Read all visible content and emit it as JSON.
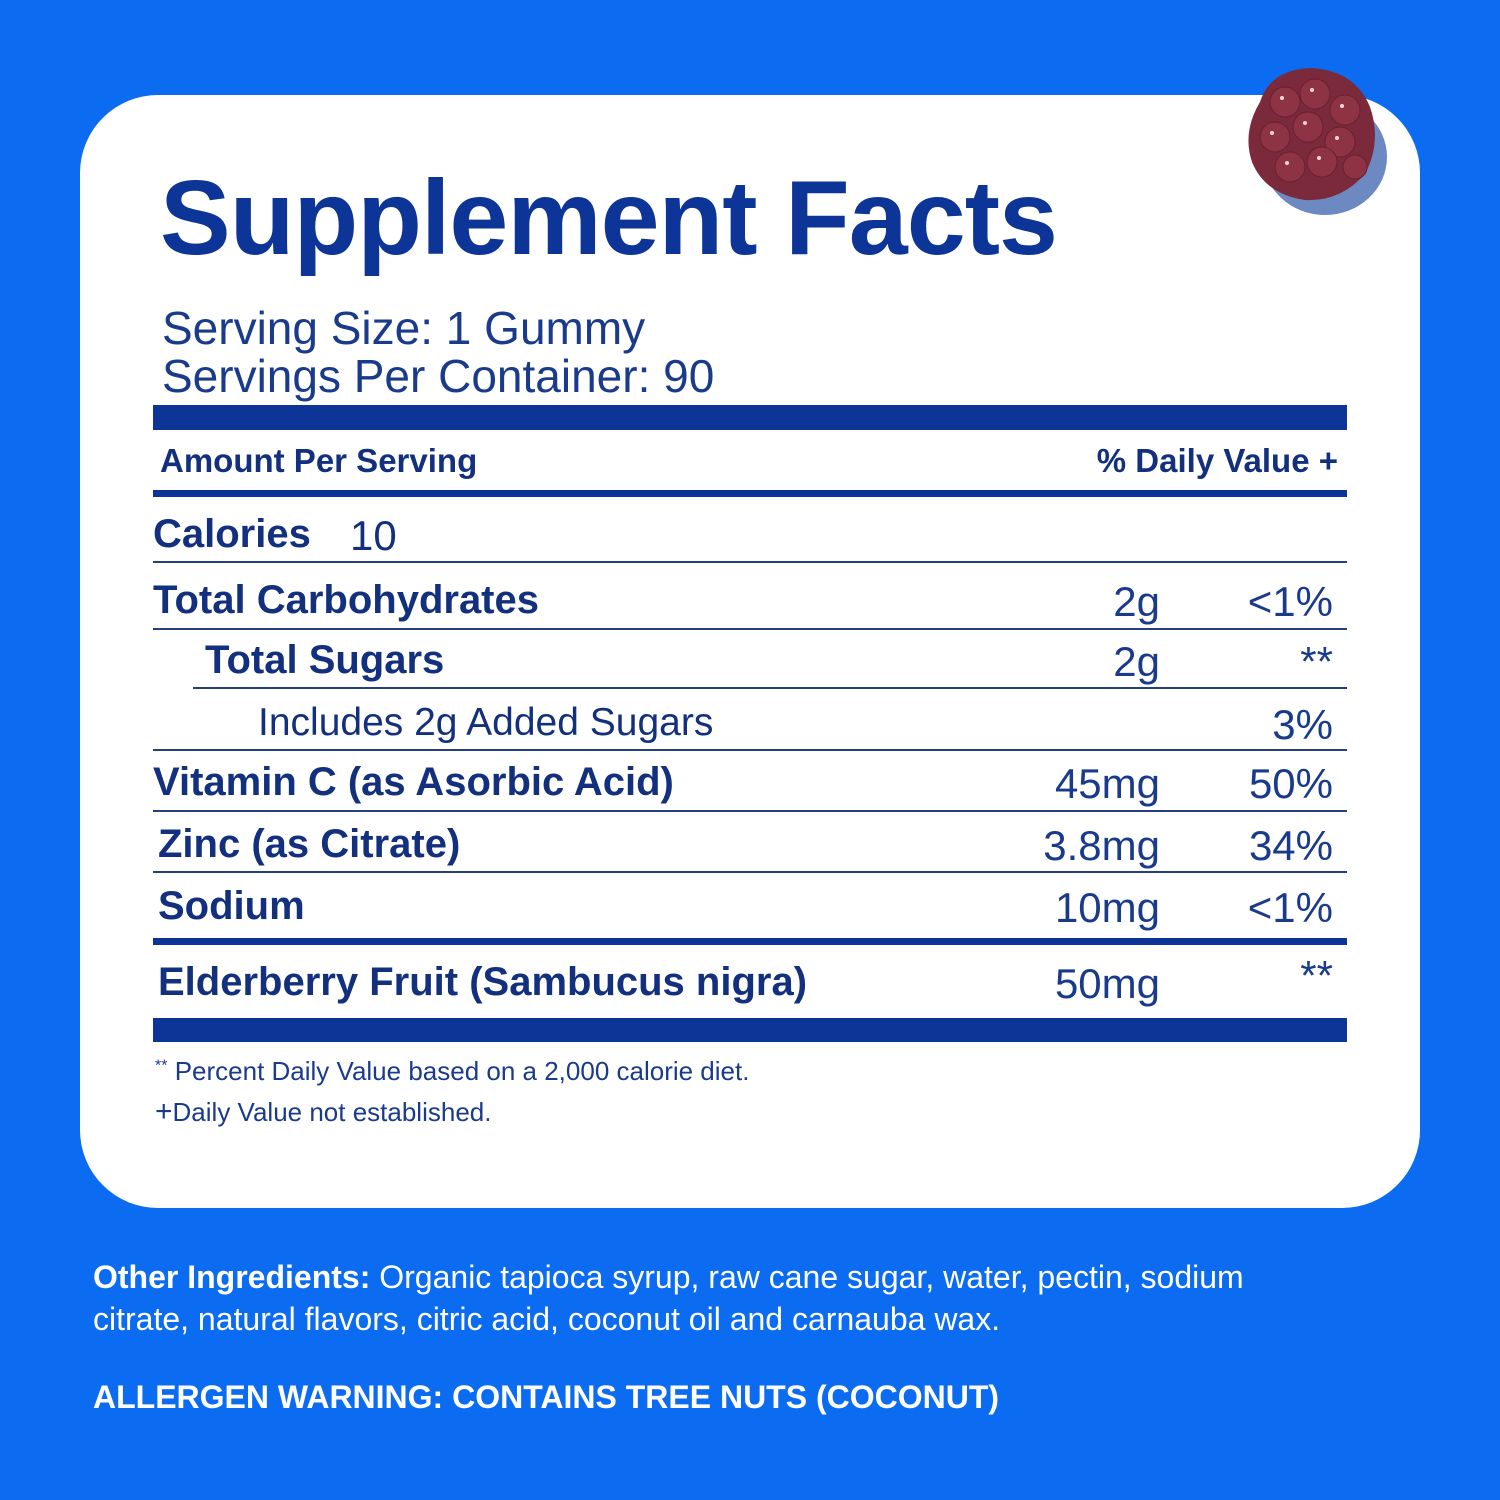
{
  "label": {
    "title": "Supplement Facts",
    "serving_size": "Serving Size: 1 Gummy",
    "servings_per_container": "Servings Per Container: 90",
    "header_amount": "Amount Per Serving",
    "header_dv": "% Daily Value +",
    "calories_label": "Calories",
    "calories_value": "10",
    "rows": [
      {
        "name": "Total Carbohydrates",
        "amount": "2g",
        "dv": "<1%"
      },
      {
        "name": "Total Sugars",
        "amount": "2g",
        "dv": "**"
      },
      {
        "name": "Includes 2g Added Sugars",
        "amount": "",
        "dv": "3%"
      },
      {
        "name": "Vitamin C (as Asorbic Acid)",
        "amount": "45mg",
        "dv": "50%"
      },
      {
        "name": "Zinc (as Citrate)",
        "amount": "3.8mg",
        "dv": "34%"
      },
      {
        "name": "Sodium",
        "amount": "10mg",
        "dv": "<1%"
      },
      {
        "name": "Elderberry Fruit (Sambucus nigra)",
        "amount": "50mg",
        "dv": "**"
      }
    ],
    "footnote_1_mark": "**",
    "footnote_1": "Percent Daily Value based on a 2,000 calorie diet.",
    "footnote_2_mark": "+",
    "footnote_2": "Daily Value not established."
  },
  "ingredients": {
    "label": "Other Ingredients:",
    "text": " Organic tapioca syrup, raw cane sugar, water, pectin, sodium citrate, natural flavors, citric acid, coconut oil and carnauba wax.",
    "allergen": "ALLERGEN WARNING: CONTAINS TREE NUTS (COCONUT)"
  },
  "colors": {
    "background": "#0b6cf2",
    "title": "#0c3597",
    "gummy": "#7a2a3a"
  },
  "icons": {
    "product": "elderberry-gummy-image"
  }
}
